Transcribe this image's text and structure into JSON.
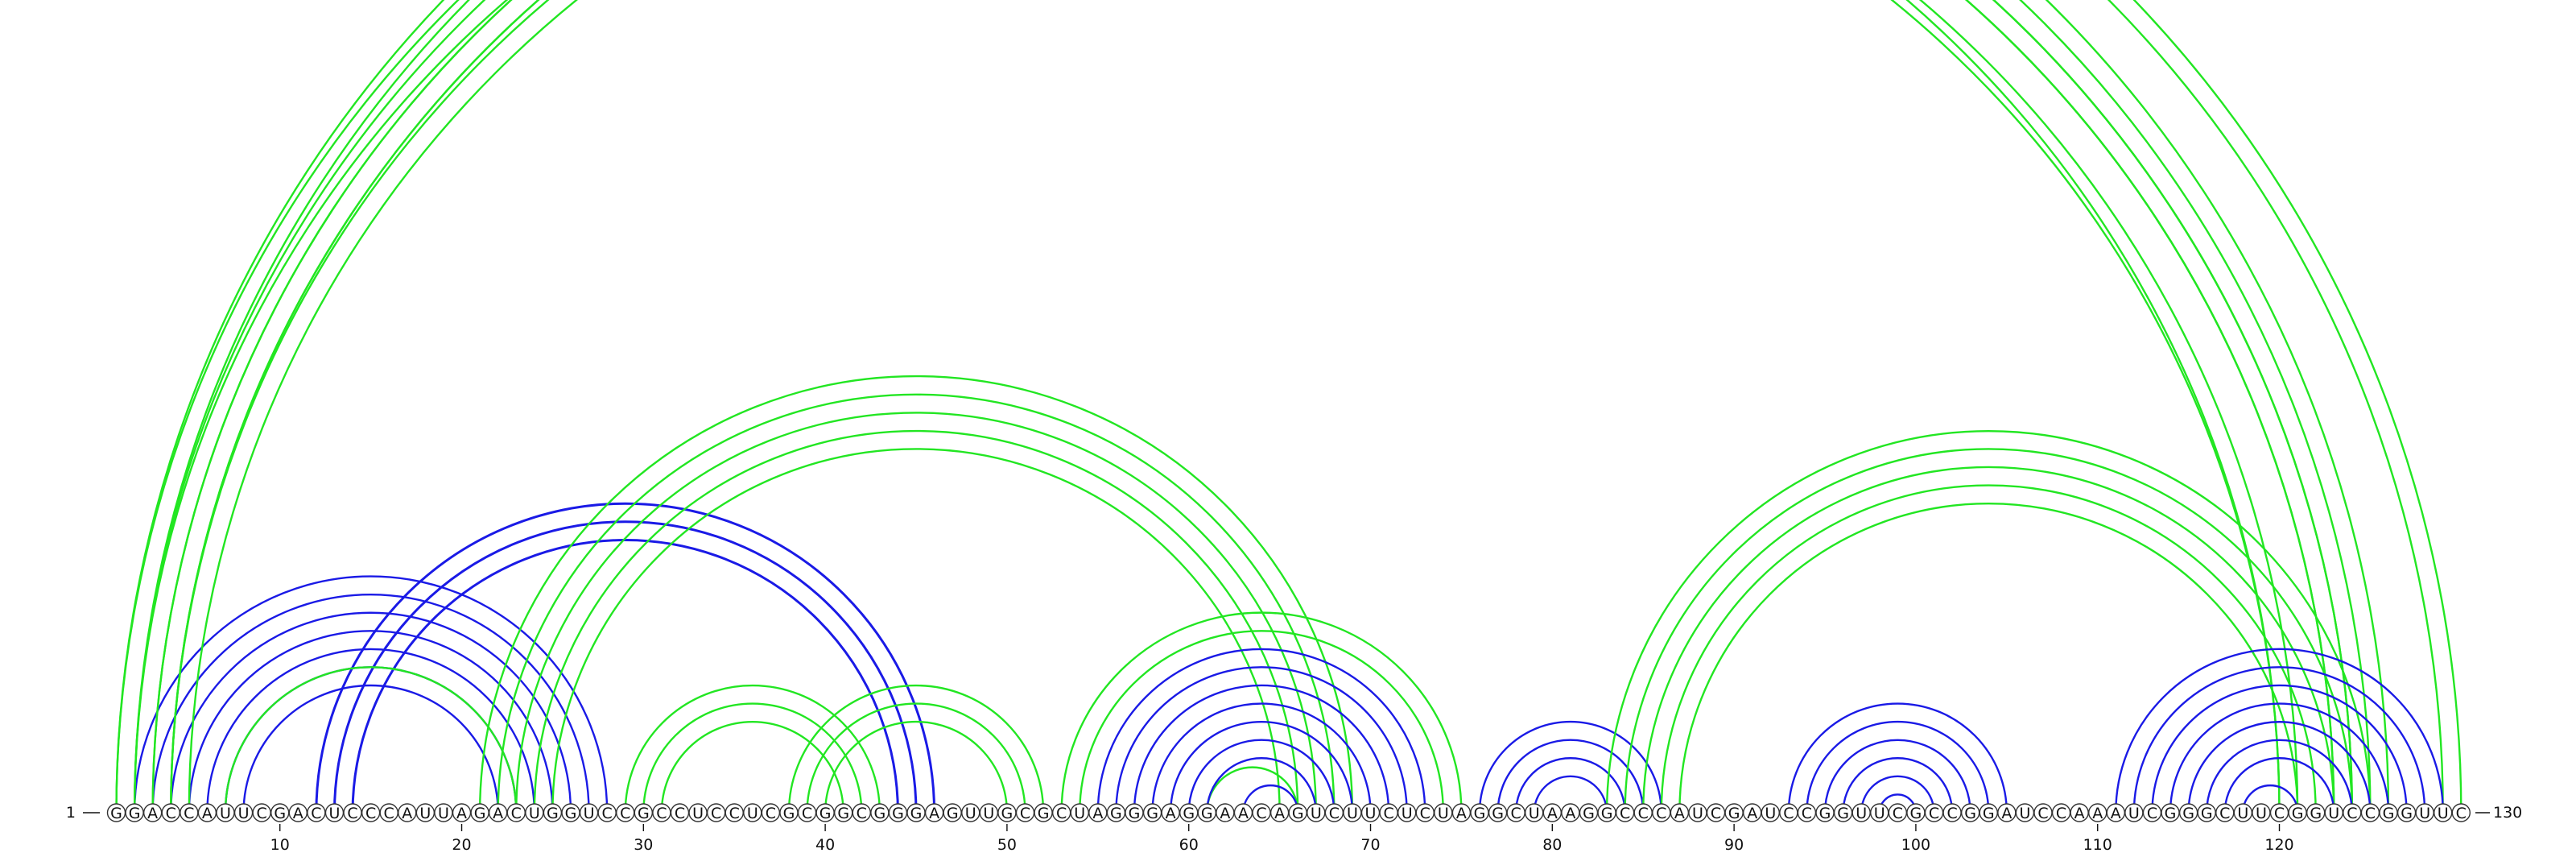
{
  "sequence": "GGACCAUUCGACUCCCAUUAGACUGGUCCGCCUCCUCGCGGCGGGAGUUGCGCUAGGGAGGAACAGUCUUCUCUAGGCUAAGGCCCAUCGAUCCGGUUCGCCGGAUCCAAAUCGGGCUUCGGUCCGGUUC",
  "start_label": "1",
  "end_label": "130",
  "tick_labels": [
    "10",
    "20",
    "30",
    "40",
    "50",
    "60",
    "70",
    "80",
    "90",
    "100",
    "110",
    "120"
  ],
  "colors": {
    "blue": "#1a1ae6",
    "green": "#22e622"
  },
  "arc_groups": [
    {
      "color": "blue",
      "start": 2,
      "end": 28,
      "size": 7
    },
    {
      "color": "blue",
      "start": 12,
      "end": 46,
      "size": 3
    },
    {
      "color": "green",
      "start": 7,
      "end": 23,
      "size": 1
    },
    {
      "color": "green",
      "start": 1,
      "end": 126,
      "size": 4
    },
    {
      "color": "green",
      "start": 2,
      "end": 120,
      "size": 1
    },
    {
      "color": "green",
      "start": 3,
      "end": 124,
      "size": 2
    },
    {
      "color": "green",
      "start": 4,
      "end": 121,
      "size": 2
    },
    {
      "color": "green",
      "start": 1,
      "end": 130,
      "size": 2
    },
    {
      "color": "green",
      "start": 21,
      "end": 69,
      "size": 5
    },
    {
      "color": "green",
      "start": 29,
      "end": 43,
      "size": 3
    },
    {
      "color": "green",
      "start": 38,
      "end": 52,
      "size": 3
    },
    {
      "color": "green",
      "start": 53,
      "end": 75,
      "size": 2
    },
    {
      "color": "green",
      "start": 61,
      "end": 66,
      "size": 1
    },
    {
      "color": "blue",
      "start": 55,
      "end": 73,
      "size": 7
    },
    {
      "color": "blue",
      "start": 63,
      "end": 66,
      "size": 1
    },
    {
      "color": "blue",
      "start": 76,
      "end": 86,
      "size": 4
    },
    {
      "color": "green",
      "start": 83,
      "end": 125,
      "size": 5
    },
    {
      "color": "blue",
      "start": 93,
      "end": 105,
      "size": 6
    },
    {
      "color": "blue",
      "start": 111,
      "end": 129,
      "size": 7
    },
    {
      "color": "blue",
      "start": 118,
      "end": 121,
      "size": 1
    }
  ]
}
